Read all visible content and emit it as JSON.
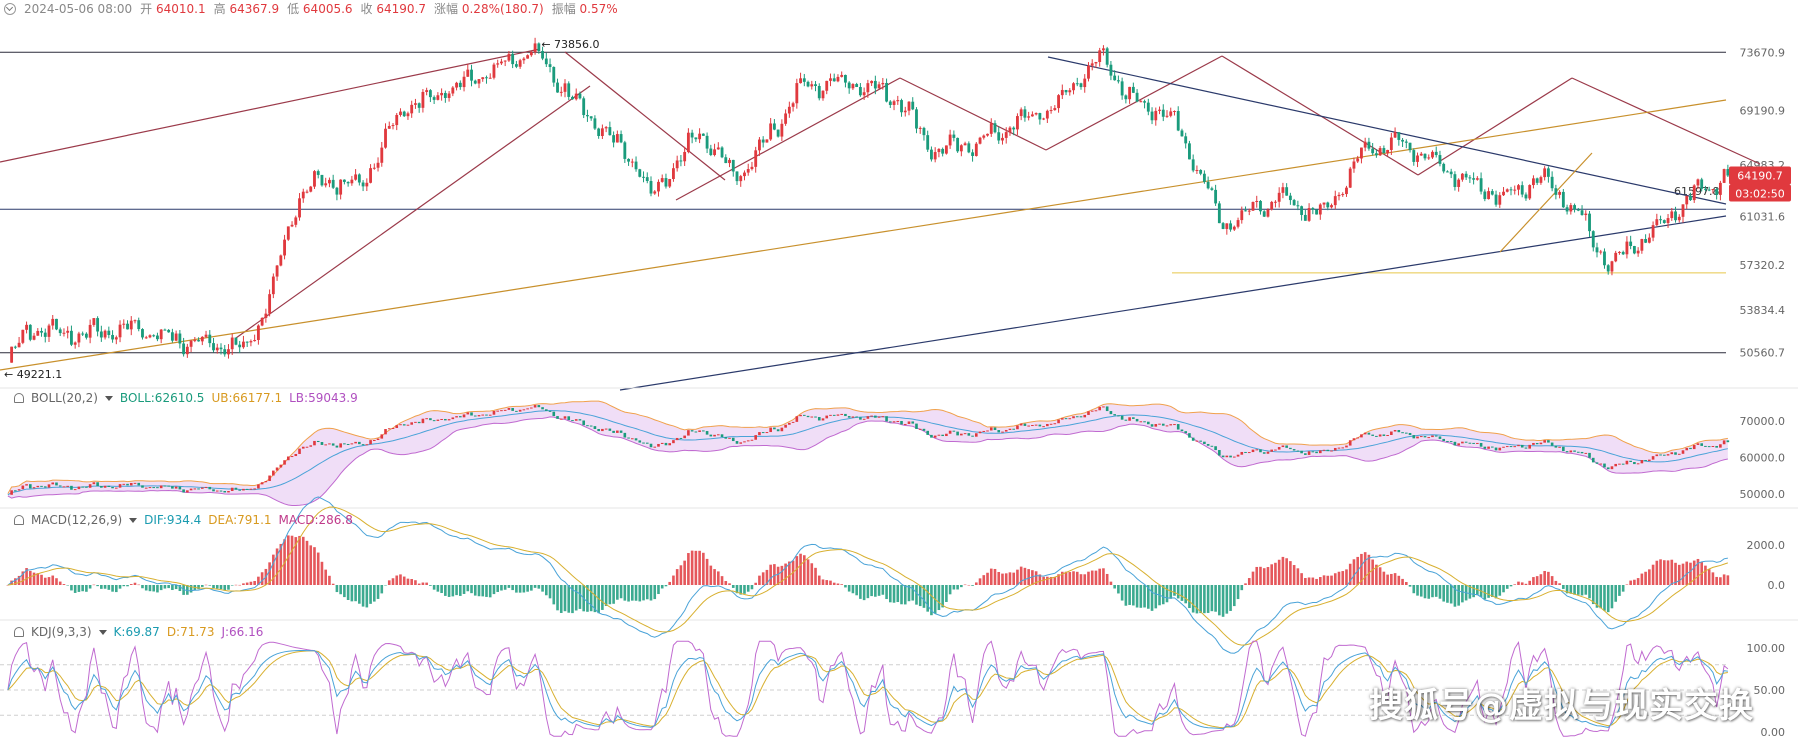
{
  "header": {
    "date": "2024-05-06 08:00",
    "open_label": "开",
    "open": "64010.1",
    "high_label": "高",
    "high": "64367.9",
    "low_label": "低",
    "low": "64005.6",
    "close_label": "收",
    "close": "64190.7",
    "change_label": "涨幅",
    "change": "0.28%(180.7)",
    "amp_label": "振幅",
    "amp": "0.57%"
  },
  "colors": {
    "up": "#e0393e",
    "down": "#1a9b7c",
    "trend_navy": "#2b3a6b",
    "trend_maroon": "#9b3a4a",
    "trend_gold": "#c8902c",
    "support_yellow": "#e6c84a",
    "boll_mid": "#4aa3d8",
    "boll_ub": "#f0a14c",
    "boll_lb": "#c06ad0",
    "boll_fill": "#ecd6f5",
    "dif": "#4aa3d8",
    "dea": "#d8b030",
    "k": "#4aa3d8",
    "d": "#d8b030",
    "j": "#c06ad0",
    "price_tag": "#e0393e"
  },
  "price_panel": {
    "y_ticks": [
      "73670.9",
      "69190.9",
      "64983.2",
      "61031.6",
      "57320.2",
      "53834.4",
      "50560.7"
    ],
    "y_ticks_num": [
      73670.9,
      69190.9,
      64983.2,
      61031.6,
      57320.2,
      53834.4,
      50560.7
    ],
    "current_price": "64190.7",
    "countdown": "03:02:50",
    "line_label": "61597.8",
    "high_annotation": "73856.0",
    "low_annotation": "49221.1"
  },
  "boll": {
    "name": "BOLL(20,2)",
    "boll": "BOLL:62610.5",
    "ub": "UB:66177.1",
    "lb": "LB:59043.9",
    "y_ticks": [
      "70000.0",
      "60000.0",
      "50000.0"
    ]
  },
  "macd": {
    "name": "MACD(12,26,9)",
    "dif": "DIF:934.4",
    "dea": "DEA:791.1",
    "macd": "MACD:286.8",
    "y_ticks": [
      "2000.0",
      "0.0"
    ]
  },
  "kdj": {
    "name": "KDJ(9,3,3)",
    "k": "K:69.87",
    "d": "D:71.73",
    "j": "J:66.16",
    "y_ticks": [
      "100.00",
      "50.00",
      "0.00"
    ]
  },
  "watermark": "搜狐号@虚拟与现实交换",
  "chart_data": {
    "type": "candlestick",
    "title": "",
    "price_range": [
      48000,
      76000
    ],
    "anchors": [
      [
        0,
        49800
      ],
      [
        5,
        52400
      ],
      [
        20,
        52000
      ],
      [
        35,
        52500
      ],
      [
        45,
        51500
      ],
      [
        55,
        51300
      ],
      [
        64,
        50800
      ],
      [
        70,
        55000
      ],
      [
        78,
        62500
      ],
      [
        82,
        63800
      ],
      [
        95,
        63500
      ],
      [
        105,
        69200
      ],
      [
        115,
        70500
      ],
      [
        125,
        71800
      ],
      [
        140,
        73856
      ],
      [
        148,
        71200
      ],
      [
        158,
        68000
      ],
      [
        168,
        65000
      ],
      [
        172,
        62400
      ],
      [
        185,
        67500
      ],
      [
        195,
        64000
      ],
      [
        205,
        67800
      ],
      [
        212,
        71000
      ],
      [
        225,
        71500
      ],
      [
        238,
        70200
      ],
      [
        248,
        66000
      ],
      [
        260,
        66800
      ],
      [
        268,
        68000
      ],
      [
        280,
        69500
      ],
      [
        292,
        73400
      ],
      [
        300,
        70200
      ],
      [
        312,
        68500
      ],
      [
        325,
        60500
      ],
      [
        340,
        62400
      ],
      [
        352,
        61200
      ],
      [
        362,
        66000
      ],
      [
        372,
        67000
      ],
      [
        380,
        65400
      ],
      [
        392,
        63500
      ],
      [
        400,
        62500
      ],
      [
        410,
        64200
      ],
      [
        420,
        61200
      ],
      [
        428,
        57200
      ],
      [
        440,
        60000
      ],
      [
        452,
        63000
      ],
      [
        460,
        64190.7
      ]
    ]
  }
}
